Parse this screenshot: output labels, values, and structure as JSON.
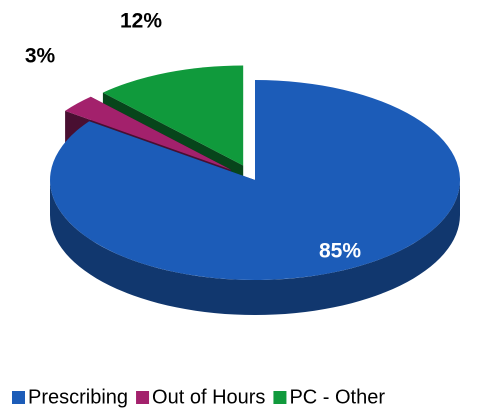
{
  "chart_data": {
    "type": "pie",
    "categories": [
      "Prescribing",
      "Out of Hours",
      "PC - Other"
    ],
    "values": [
      85,
      3,
      12
    ],
    "value_labels": [
      "85%",
      "3%",
      "12%"
    ],
    "colors": [
      "#1c5cb8",
      "#a3216c",
      "#109a3c"
    ],
    "legend": "bottom"
  }
}
